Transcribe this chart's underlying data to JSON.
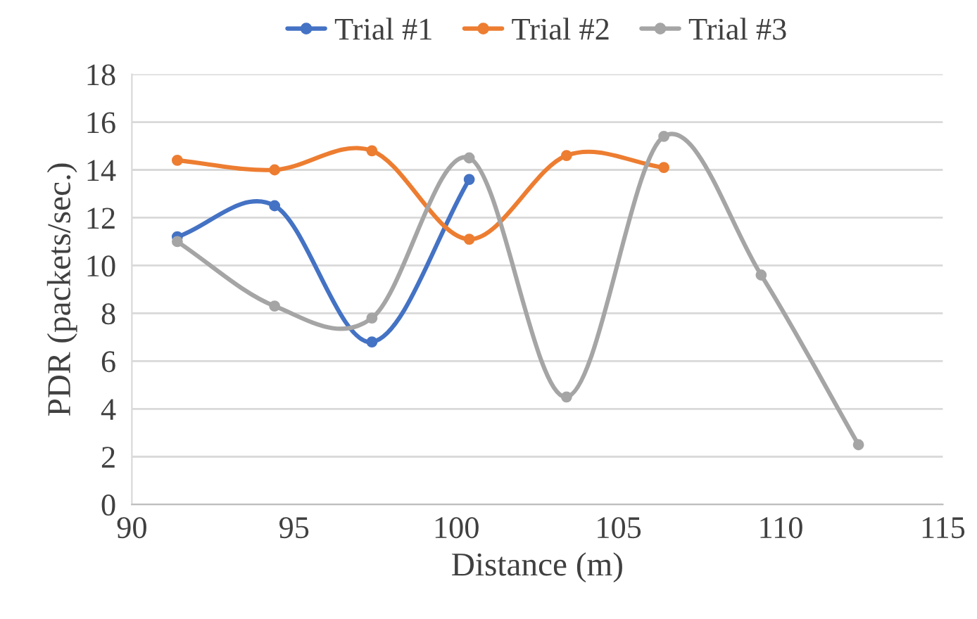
{
  "chart_data": {
    "type": "line",
    "xlabel": "Distance (m)",
    "ylabel": "PDR (packets/sec.)",
    "series": [
      {
        "name": "Trial #1",
        "color": "#4472c4",
        "x": [
          91.4,
          94.4,
          97.4,
          100.4
        ],
        "values": [
          11.2,
          12.5,
          6.8,
          13.6
        ]
      },
      {
        "name": "Trial #2",
        "color": "#ed7d31",
        "x": [
          91.4,
          94.4,
          97.4,
          100.4,
          103.4,
          106.4
        ],
        "values": [
          14.4,
          14.0,
          14.8,
          11.1,
          14.6,
          14.1
        ]
      },
      {
        "name": "Trial #3",
        "color": "#a5a5a5",
        "x": [
          91.4,
          94.4,
          97.4,
          100.4,
          103.4,
          106.4,
          109.4,
          112.4
        ],
        "values": [
          11.0,
          8.3,
          7.8,
          14.5,
          4.5,
          15.4,
          9.6,
          2.5
        ]
      }
    ],
    "xlim": [
      90,
      115
    ],
    "xticks": [
      90,
      95,
      100,
      105,
      110,
      115
    ],
    "ylim": [
      0,
      18
    ],
    "yticks": [
      0,
      2,
      4,
      6,
      8,
      10,
      12,
      14,
      16,
      18
    ],
    "grid": "y",
    "legend": "top",
    "marker": "circle",
    "line_style": "solid"
  }
}
